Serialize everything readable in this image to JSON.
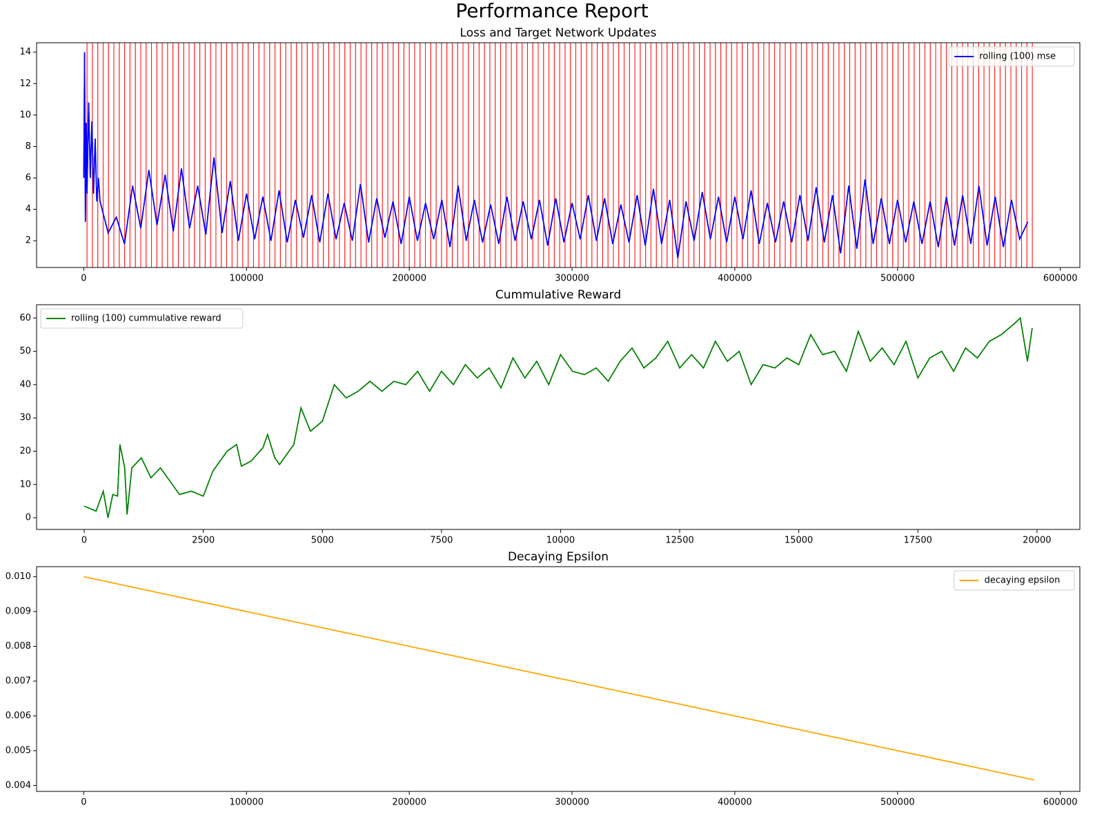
{
  "title": "Performance Report",
  "chart_data": [
    {
      "type": "line",
      "title": "Loss and Target Network Updates",
      "legend": "upper right",
      "xlim": [
        -29000,
        612000
      ],
      "ylim": [
        0.3,
        14.6
      ],
      "xticks": [
        0,
        100000,
        200000,
        300000,
        400000,
        500000,
        600000
      ],
      "yticks": [
        2,
        4,
        6,
        8,
        10,
        12,
        14
      ],
      "vline_color": "#ff0000",
      "vlines": [
        2000,
        5300,
        8600,
        11900,
        15200,
        18500,
        21800,
        25100,
        28400,
        31700,
        35000,
        38300,
        41600,
        44900,
        48200,
        51500,
        54800,
        58100,
        61400,
        64700,
        68000,
        71300,
        74600,
        77900,
        81200,
        84500,
        87800,
        91100,
        94400,
        97700,
        101000,
        104300,
        107600,
        110900,
        114200,
        117500,
        120800,
        124100,
        127400,
        130700,
        134000,
        137300,
        140600,
        143900,
        147200,
        150500,
        153800,
        157100,
        160400,
        163700,
        167000,
        170300,
        173600,
        176900,
        180200,
        183500,
        186800,
        190100,
        193400,
        196700,
        200000,
        203300,
        206600,
        209900,
        213200,
        216500,
        219800,
        223100,
        226400,
        229700,
        233000,
        236300,
        239600,
        242900,
        246200,
        249500,
        252800,
        256100,
        259400,
        262700,
        266000,
        269300,
        272600,
        275900,
        279200,
        282500,
        285800,
        289100,
        292400,
        295700,
        299000,
        302300,
        305600,
        308900,
        312200,
        315500,
        318800,
        322100,
        325400,
        328700,
        332000,
        335300,
        338600,
        341900,
        345200,
        348500,
        351800,
        355100,
        358400,
        361700,
        365000,
        368300,
        371600,
        374900,
        378200,
        381500,
        384800,
        388100,
        391400,
        394700,
        398000,
        401300,
        404600,
        407900,
        411200,
        414500,
        417800,
        421100,
        424400,
        427700,
        431000,
        434300,
        437600,
        440900,
        444200,
        447500,
        450800,
        454100,
        457400,
        460700,
        464000,
        467300,
        470600,
        473900,
        477200,
        480500,
        483800,
        487100,
        490400,
        493700,
        497000,
        500300,
        503600,
        506900,
        510200,
        513500,
        516800,
        520100,
        523400,
        526700,
        530000,
        533300,
        536600,
        539900,
        543200,
        546500,
        549800,
        553100,
        556400,
        559700,
        563000,
        566300,
        569600,
        572900,
        576200,
        579500,
        582800
      ],
      "x": [
        0,
        500,
        1000,
        1500,
        2000,
        3000,
        4000,
        5000,
        6000,
        7000,
        8000,
        9000,
        10000,
        15000,
        20000,
        25000,
        30000,
        35000,
        40000,
        45000,
        50000,
        55000,
        60000,
        65000,
        70000,
        75000,
        80000,
        85000,
        90000,
        95000,
        100000,
        105000,
        110000,
        115000,
        120000,
        125000,
        130000,
        135000,
        140000,
        145000,
        150000,
        155000,
        160000,
        165000,
        170000,
        175000,
        180000,
        185000,
        190000,
        195000,
        200000,
        205000,
        210000,
        215000,
        220000,
        225000,
        230000,
        235000,
        240000,
        245000,
        250000,
        255000,
        260000,
        265000,
        270000,
        275000,
        280000,
        285000,
        290000,
        295000,
        300000,
        305000,
        310000,
        315000,
        320000,
        325000,
        330000,
        335000,
        340000,
        345000,
        350000,
        355000,
        360000,
        365000,
        370000,
        375000,
        380000,
        385000,
        390000,
        395000,
        400000,
        405000,
        410000,
        415000,
        420000,
        425000,
        430000,
        435000,
        440000,
        445000,
        450000,
        455000,
        460000,
        465000,
        470000,
        475000,
        480000,
        485000,
        490000,
        495000,
        500000,
        505000,
        510000,
        515000,
        520000,
        525000,
        530000,
        535000,
        540000,
        545000,
        550000,
        555000,
        560000,
        565000,
        570000,
        575000,
        580000
      ],
      "series": [
        {
          "name": "rolling (100) mse",
          "color": "#0000ff",
          "values": [
            6,
            14,
            3.2,
            9.5,
            5,
            10.8,
            6,
            9.6,
            5,
            8.5,
            4.5,
            6,
            4.5,
            2.5,
            3.5,
            1.8,
            5.5,
            2.8,
            6.5,
            3.0,
            6.2,
            2.6,
            6.6,
            2.8,
            5.5,
            2.4,
            7.3,
            2.5,
            5.8,
            2.0,
            5.0,
            2.1,
            4.8,
            2.0,
            5.2,
            1.9,
            4.6,
            2.2,
            4.9,
            1.9,
            5.0,
            2.1,
            4.4,
            2.0,
            5.6,
            1.9,
            4.7,
            2.2,
            4.5,
            1.8,
            4.8,
            2.0,
            4.4,
            2.1,
            4.6,
            1.6,
            5.5,
            2.0,
            4.6,
            1.9,
            4.3,
            1.8,
            4.8,
            2.0,
            4.5,
            2.1,
            4.6,
            1.7,
            4.7,
            1.9,
            4.4,
            2.1,
            4.9,
            2.0,
            4.7,
            1.8,
            4.3,
            1.9,
            4.9,
            1.7,
            5.3,
            1.8,
            4.6,
            0.9,
            4.5,
            2.0,
            5.1,
            2.1,
            4.8,
            1.9,
            4.8,
            2.1,
            5.2,
            1.8,
            4.4,
            1.9,
            4.5,
            1.9,
            4.9,
            2.0,
            5.4,
            1.9,
            4.9,
            1.2,
            5.5,
            1.5,
            5.9,
            1.8,
            4.7,
            1.8,
            4.6,
            1.9,
            4.5,
            1.8,
            4.5,
            1.6,
            4.8,
            1.7,
            4.9,
            1.8,
            5.5,
            1.7,
            4.8,
            1.6,
            4.6,
            2.1,
            3.2
          ]
        }
      ]
    },
    {
      "type": "line",
      "title": "Cummulative Reward",
      "legend": "upper left",
      "xlim": [
        -1000,
        20900
      ],
      "ylim": [
        -3.5,
        64
      ],
      "xticks": [
        0,
        2500,
        5000,
        7500,
        10000,
        12500,
        15000,
        17500,
        20000
      ],
      "yticks": [
        0,
        10,
        20,
        30,
        40,
        50,
        60
      ],
      "x": [
        0,
        250,
        400,
        500,
        600,
        700,
        750,
        850,
        900,
        1000,
        1200,
        1400,
        1600,
        1800,
        2000,
        2250,
        2500,
        2700,
        3000,
        3200,
        3300,
        3500,
        3750,
        3850,
        4000,
        4100,
        4400,
        4550,
        4750,
        5000,
        5250,
        5500,
        5750,
        6000,
        6250,
        6500,
        6750,
        7000,
        7250,
        7500,
        7750,
        8000,
        8250,
        8500,
        8750,
        9000,
        9250,
        9500,
        9750,
        10000,
        10250,
        10500,
        10750,
        11000,
        11250,
        11500,
        11750,
        12000,
        12250,
        12500,
        12750,
        13000,
        13250,
        13500,
        13750,
        14000,
        14250,
        14500,
        14750,
        15000,
        15250,
        15500,
        15750,
        16000,
        16250,
        16500,
        16750,
        17000,
        17250,
        17500,
        17750,
        18000,
        18250,
        18500,
        18750,
        19000,
        19250,
        19500,
        19650,
        19800,
        19900
      ],
      "series": [
        {
          "name": "rolling (100) cummulative reward",
          "color": "#008000",
          "values": [
            3.5,
            2,
            8,
            0,
            7,
            6.5,
            22,
            15,
            1,
            15,
            18,
            12,
            15,
            11,
            7,
            8,
            6.5,
            14,
            20,
            22,
            15.5,
            17,
            21,
            25,
            18,
            16,
            22,
            33,
            26,
            29,
            40,
            36,
            38,
            41,
            38,
            41,
            40,
            44,
            38,
            44,
            40,
            46,
            42,
            45,
            39,
            48,
            42,
            47,
            40,
            49,
            44,
            43,
            45,
            41,
            47,
            51,
            45,
            48,
            53,
            45,
            49,
            45,
            53,
            47,
            50,
            40,
            46,
            45,
            48,
            46,
            55,
            49,
            50,
            44,
            56,
            47,
            51,
            46,
            53,
            42,
            48,
            50,
            44,
            51,
            48,
            53,
            55,
            58,
            60,
            47,
            57
          ]
        }
      ]
    },
    {
      "type": "line",
      "title": "Decaying Epsilon",
      "legend": "upper right",
      "xlim": [
        -29000,
        612000
      ],
      "ylim": [
        0.00383,
        0.01029
      ],
      "xticks": [
        0,
        100000,
        200000,
        300000,
        400000,
        500000,
        600000
      ],
      "yticks": [
        0.004,
        0.005,
        0.006,
        0.007,
        0.008,
        0.009,
        {
          "value": 0.01,
          "label": "0.010"
        }
      ],
      "x": [
        0,
        584000
      ],
      "series": [
        {
          "name": "decaying epsilon",
          "color": "#ffa500",
          "values": [
            0.01,
            0.00416
          ]
        }
      ]
    }
  ]
}
